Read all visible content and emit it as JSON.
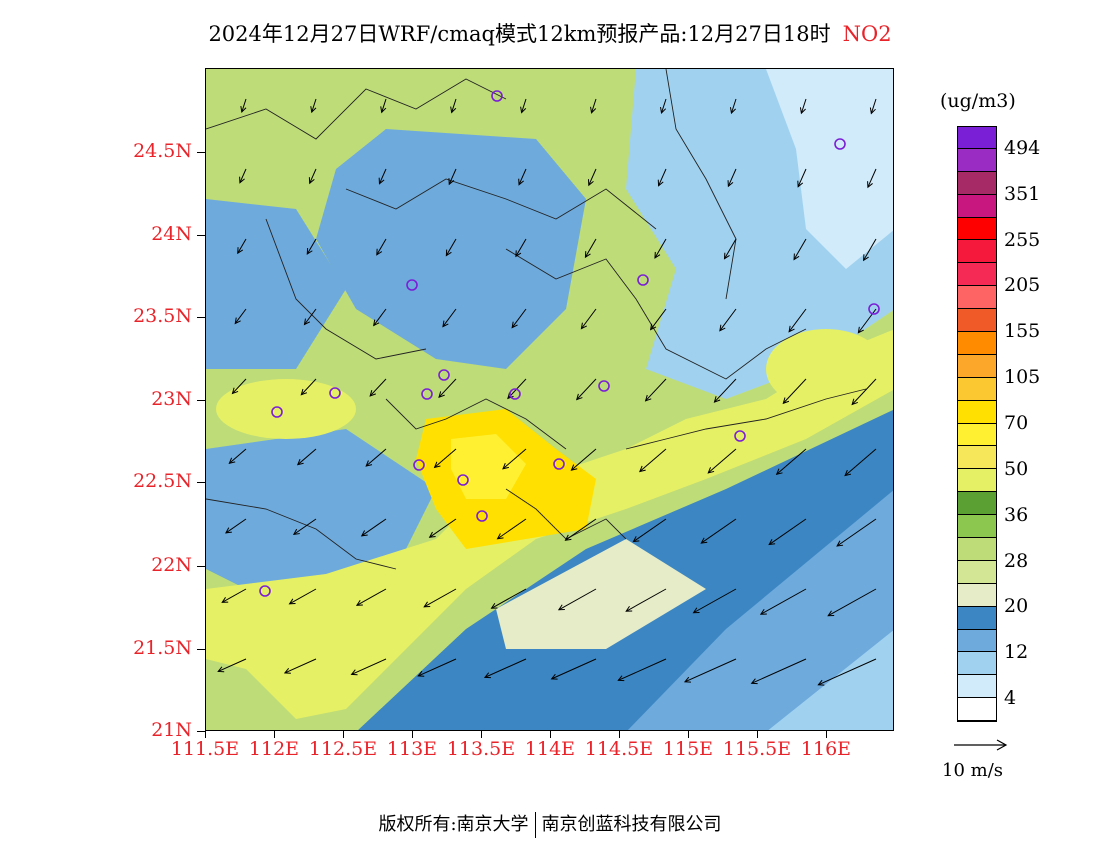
{
  "title": {
    "text": "2024年12月27日WRF/cmaq模式12km预报产品:12月27日18时",
    "variable": "NO2",
    "variable_color": "#e8242a"
  },
  "map": {
    "lon_range": [
      111.5,
      116.5
    ],
    "lat_range": [
      21.0,
      25.0
    ],
    "lat_ticks": [
      "24.5N",
      "24N",
      "23.5N",
      "23N",
      "22.5N",
      "22N",
      "21.5N",
      "21N"
    ],
    "lon_ticks": [
      "111.5E",
      "112E",
      "112.5E",
      "113E",
      "113.5E",
      "114E",
      "114.5E",
      "115E",
      "115.5E",
      "116E"
    ],
    "axis_label_color": "#e8242a"
  },
  "colorbar": {
    "unit": "(ug/m3)",
    "labels": [
      "494",
      "351",
      "255",
      "205",
      "155",
      "105",
      "70",
      "50",
      "36",
      "28",
      "20",
      "12",
      "4"
    ],
    "colors_top_to_bottom": [
      "#7b1fd6",
      "#9a2cc4",
      "#a62a66",
      "#c8177e",
      "#ff0000",
      "#f5193c",
      "#f52a55",
      "#ff6464",
      "#ef5a28",
      "#ff8c00",
      "#fca62a",
      "#fcc832",
      "#ffe000",
      "#fff032",
      "#f5e65a",
      "#e6f064",
      "#5aa032",
      "#8cc850",
      "#bedc78",
      "#d2e696",
      "#e6ecc8",
      "#3c87c3",
      "#6eaadc",
      "#a0d2f0",
      "#d2ebfa",
      "#ffffff"
    ]
  },
  "wind_reference": {
    "label": "10 m/s"
  },
  "footer": {
    "left": "版权所有:南京大学",
    "right": "南京创蓝科技有限公司"
  }
}
